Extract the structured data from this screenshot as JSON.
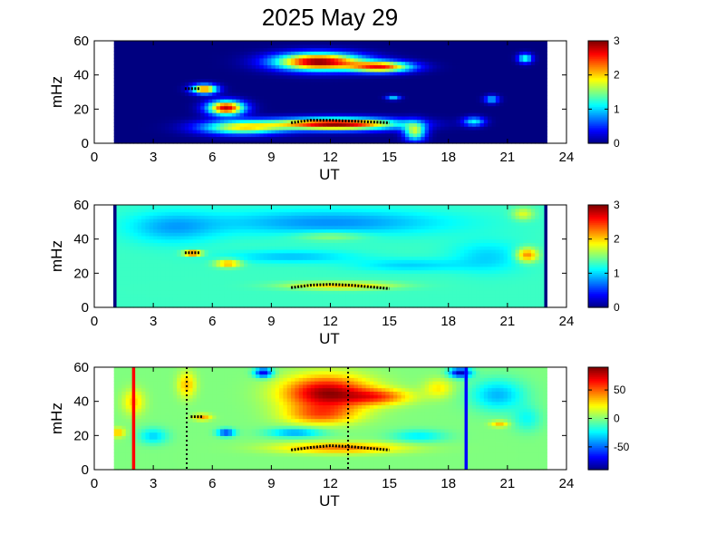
{
  "title": "2025 May 29",
  "chart_data": [
    {
      "type": "heatmap",
      "name": "panel-1",
      "xlabel": "UT",
      "ylabel": "mHz",
      "xlim": [
        0,
        24
      ],
      "ylim": [
        0,
        60
      ],
      "xticks": [
        0,
        3,
        6,
        9,
        12,
        15,
        18,
        21,
        24
      ],
      "yticks": [
        0,
        20,
        40,
        60
      ],
      "data_x_range": [
        1,
        23
      ],
      "background_level": 0,
      "colorbar": {
        "min": 0,
        "max": 3,
        "ticks": [
          0,
          1,
          2,
          3
        ],
        "colormap": "jet"
      },
      "blobs": [
        {
          "x": 11.4,
          "y": 48.0,
          "rx": 2.4,
          "ry": 5.5,
          "level": 3.0
        },
        {
          "x": 14.6,
          "y": 45.0,
          "rx": 1.7,
          "ry": 3.5,
          "level": 2.4
        },
        {
          "x": 5.6,
          "y": 32.0,
          "rx": 0.7,
          "ry": 3.0,
          "level": 2.4
        },
        {
          "x": 6.7,
          "y": 21.0,
          "rx": 1.0,
          "ry": 4.5,
          "level": 2.8
        },
        {
          "x": 7.5,
          "y": 9.5,
          "rx": 2.3,
          "ry": 4.5,
          "level": 1.8
        },
        {
          "x": 12.3,
          "y": 11.5,
          "rx": 3.4,
          "ry": 3.8,
          "level": 3.0
        },
        {
          "x": 16.3,
          "y": 7.0,
          "rx": 0.6,
          "ry": 6.0,
          "level": 1.6
        },
        {
          "x": 21.9,
          "y": 50.0,
          "rx": 0.4,
          "ry": 3.0,
          "level": 1.3
        },
        {
          "x": 19.3,
          "y": 13.0,
          "rx": 0.6,
          "ry": 3.0,
          "level": 1.1
        },
        {
          "x": 20.2,
          "y": 26.0,
          "rx": 0.4,
          "ry": 2.5,
          "level": 1.0
        },
        {
          "x": 15.2,
          "y": 27.0,
          "rx": 0.4,
          "ry": 1.5,
          "level": 1.0
        }
      ],
      "ridges": [
        {
          "x": [
            4.6,
            5.4
          ],
          "y": [
            32,
            32
          ]
        },
        {
          "x": [
            10.0,
            11.0,
            12.0,
            13.0,
            14.0,
            15.0
          ],
          "y": [
            12.0,
            13.5,
            13.5,
            13.0,
            12.5,
            12.0
          ]
        }
      ],
      "vlines": []
    },
    {
      "type": "heatmap",
      "name": "panel-2",
      "xlabel": "UT",
      "ylabel": "mHz",
      "xlim": [
        0,
        24
      ],
      "ylim": [
        0,
        60
      ],
      "xticks": [
        0,
        3,
        6,
        9,
        12,
        15,
        18,
        21,
        24
      ],
      "yticks": [
        0,
        20,
        40,
        60
      ],
      "data_x_range": [
        1,
        23
      ],
      "background_level": 1.3,
      "colorbar": {
        "min": 0,
        "max": 3,
        "ticks": [
          0,
          1,
          2,
          3
        ],
        "colormap": "jet"
      },
      "blobs": [
        {
          "x": 12.0,
          "y": 50.0,
          "rx": 6.5,
          "ry": 8.0,
          "level": -0.5
        },
        {
          "x": 4.0,
          "y": 47.0,
          "rx": 2.5,
          "ry": 10.0,
          "level": -0.4
        },
        {
          "x": 10.0,
          "y": 30.0,
          "rx": 3.5,
          "ry": 4.0,
          "level": -0.35
        },
        {
          "x": 16.0,
          "y": 25.0,
          "rx": 3.0,
          "ry": 4.0,
          "level": -0.3
        },
        {
          "x": 20.0,
          "y": 30.0,
          "rx": 2.0,
          "ry": 10.0,
          "level": -0.3
        },
        {
          "x": 6.8,
          "y": 26.0,
          "rx": 0.7,
          "ry": 2.5,
          "level": 0.9
        },
        {
          "x": 5.0,
          "y": 32.0,
          "rx": 0.5,
          "ry": 1.5,
          "level": 1.5
        },
        {
          "x": 22.0,
          "y": 31.0,
          "rx": 0.6,
          "ry": 4.5,
          "level": 1.0
        },
        {
          "x": 12.5,
          "y": 13.0,
          "rx": 3.0,
          "ry": 2.5,
          "level": 0.7
        },
        {
          "x": 12.0,
          "y": 42.0,
          "rx": 2.0,
          "ry": 3.0,
          "level": 0.35
        },
        {
          "x": 21.8,
          "y": 55.0,
          "rx": 0.6,
          "ry": 4.0,
          "level": 0.5
        }
      ],
      "ridges": [
        {
          "x": [
            4.6,
            5.4
          ],
          "y": [
            32,
            32
          ]
        },
        {
          "x": [
            10.0,
            11.0,
            12.0,
            13.0,
            14.0,
            15.0
          ],
          "y": [
            11.5,
            13.0,
            13.5,
            13.0,
            12.0,
            11.0
          ]
        }
      ],
      "vlines": [
        {
          "x": 1.05,
          "color": "#00007f",
          "style": "solid"
        },
        {
          "x": 22.95,
          "color": "#00007f",
          "style": "solid"
        }
      ]
    },
    {
      "type": "heatmap",
      "name": "panel-3",
      "xlabel": "UT",
      "ylabel": "mHz",
      "xlim": [
        0,
        24
      ],
      "ylim": [
        0,
        60
      ],
      "xticks": [
        0,
        3,
        6,
        9,
        12,
        15,
        18,
        21,
        24
      ],
      "yticks": [
        0,
        20,
        40,
        60
      ],
      "data_x_range": [
        1,
        23
      ],
      "background_level": 0,
      "colorbar": {
        "min": -90,
        "max": 90,
        "ticks": [
          50,
          0,
          -50
        ],
        "colormap": "jet"
      },
      "blobs": [
        {
          "x": 11.8,
          "y": 45.0,
          "rx": 2.4,
          "ry": 11.0,
          "level": 85
        },
        {
          "x": 11.5,
          "y": 32.0,
          "rx": 2.0,
          "ry": 6.0,
          "level": 40
        },
        {
          "x": 14.5,
          "y": 43.0,
          "rx": 1.8,
          "ry": 5.0,
          "level": 45
        },
        {
          "x": 12.5,
          "y": 13.0,
          "rx": 3.5,
          "ry": 3.5,
          "level": 45
        },
        {
          "x": 4.7,
          "y": 50.0,
          "rx": 0.5,
          "ry": 8.0,
          "level": 35
        },
        {
          "x": 5.5,
          "y": 31.0,
          "rx": 0.5,
          "ry": 2.0,
          "level": 40
        },
        {
          "x": 10.2,
          "y": 22.0,
          "rx": 1.5,
          "ry": 3.0,
          "level": -40
        },
        {
          "x": 6.7,
          "y": 22.0,
          "rx": 0.5,
          "ry": 2.5,
          "level": -60
        },
        {
          "x": 8.6,
          "y": 57.0,
          "rx": 0.5,
          "ry": 3.0,
          "level": -75
        },
        {
          "x": 18.6,
          "y": 57.0,
          "rx": 0.6,
          "ry": 3.0,
          "level": -80
        },
        {
          "x": 2.0,
          "y": 40.0,
          "rx": 0.6,
          "ry": 8.0,
          "level": 30
        },
        {
          "x": 1.2,
          "y": 22.0,
          "rx": 0.4,
          "ry": 3.0,
          "level": 35
        },
        {
          "x": 3.0,
          "y": 20.0,
          "rx": 0.8,
          "ry": 5.0,
          "level": -30
        },
        {
          "x": 16.5,
          "y": 20.0,
          "rx": 1.5,
          "ry": 4.0,
          "level": -25
        },
        {
          "x": 20.5,
          "y": 44.0,
          "rx": 1.5,
          "ry": 10.0,
          "level": -35
        },
        {
          "x": 20.6,
          "y": 27.0,
          "rx": 0.5,
          "ry": 2.0,
          "level": 35
        },
        {
          "x": 17.5,
          "y": 48.0,
          "rx": 0.8,
          "ry": 6.0,
          "level": 25
        },
        {
          "x": 22.0,
          "y": 30.0,
          "rx": 0.8,
          "ry": 8.0,
          "level": -20
        }
      ],
      "ridges": [
        {
          "x": [
            4.9,
            5.5
          ],
          "y": [
            31,
            31
          ]
        },
        {
          "x": [
            10.0,
            11.0,
            12.0,
            13.0,
            14.0,
            15.0
          ],
          "y": [
            11.5,
            13.0,
            14.0,
            13.5,
            12.5,
            11.5
          ]
        }
      ],
      "vlines": [
        {
          "x": 2.0,
          "color": "#ff0000",
          "style": "solid"
        },
        {
          "x": 4.7,
          "color": "#000000",
          "style": "dotted"
        },
        {
          "x": 12.9,
          "color": "#000000",
          "style": "dotted"
        },
        {
          "x": 18.9,
          "color": "#0000ff",
          "style": "solid"
        }
      ]
    }
  ]
}
